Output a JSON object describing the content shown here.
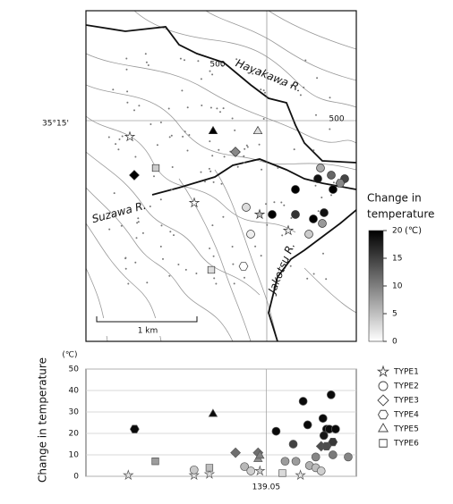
{
  "map": {
    "labels": {
      "river1": "Hayakawa R.",
      "river2": "Suzawa R.",
      "river3": "Jakotsu R.",
      "contour1": "500",
      "contour2": "500",
      "lat": "35°15'",
      "scale": "1 km"
    },
    "colorbar": {
      "title": [
        "Change in",
        "temperature"
      ],
      "unit": "(℃)",
      "clim": [
        0,
        20
      ],
      "ticks": [
        0,
        5,
        10,
        15,
        20
      ]
    }
  },
  "chart_data": {
    "type": "scatter",
    "ylabel": "Change in temperature",
    "yunit": "(℃)",
    "xlim": [
      139.03,
      139.06
    ],
    "xticks": [
      139.05
    ],
    "ylim": [
      0,
      50
    ],
    "yticks": [
      0,
      10,
      20,
      30,
      40,
      50
    ],
    "grid": true,
    "color_scale": "gray",
    "series": [
      {
        "name": "TYPE1",
        "marker": "star",
        "x": [
          139.0347,
          139.042,
          139.0437,
          139.0493,
          139.0538
        ],
        "values": [
          0.5,
          0.5,
          1,
          2.5,
          0.5
        ]
      },
      {
        "name": "TYPE2",
        "marker": "circle",
        "x": [
          139.042,
          139.0476,
          139.0483,
          139.0521,
          139.0533,
          139.0548,
          139.0555,
          139.0561,
          139.0541,
          139.0572,
          139.0546,
          139.0567,
          139.0563,
          139.0564,
          139.057,
          139.0577,
          139.0555,
          139.0574,
          139.0591,
          139.0511,
          139.053
        ],
        "values": [
          3,
          4.5,
          2.5,
          7,
          7,
          5,
          4,
          2.5,
          35,
          38,
          24,
          22,
          27,
          19,
          22,
          22,
          9,
          10,
          9,
          21,
          15
        ]
      },
      {
        "name": "TYPE3",
        "marker": "diamond",
        "x": [
          139.0466,
          139.0491,
          139.0561
        ],
        "values": [
          11,
          11,
          14
        ]
      },
      {
        "name": "TYPE4",
        "marker": "hexagon",
        "x": [
          139.0354,
          139.0567,
          139.0574
        ],
        "values": [
          22,
          14,
          16
        ]
      },
      {
        "name": "TYPE5",
        "marker": "triangle",
        "x": [
          139.0441,
          139.0491,
          139.0493
        ],
        "values": [
          29,
          8,
          9.5
        ]
      },
      {
        "name": "TYPE6",
        "marker": "square",
        "x": [
          139.0377,
          139.0437,
          139.0518
        ],
        "values": [
          7,
          4,
          1.5
        ]
      }
    ]
  }
}
